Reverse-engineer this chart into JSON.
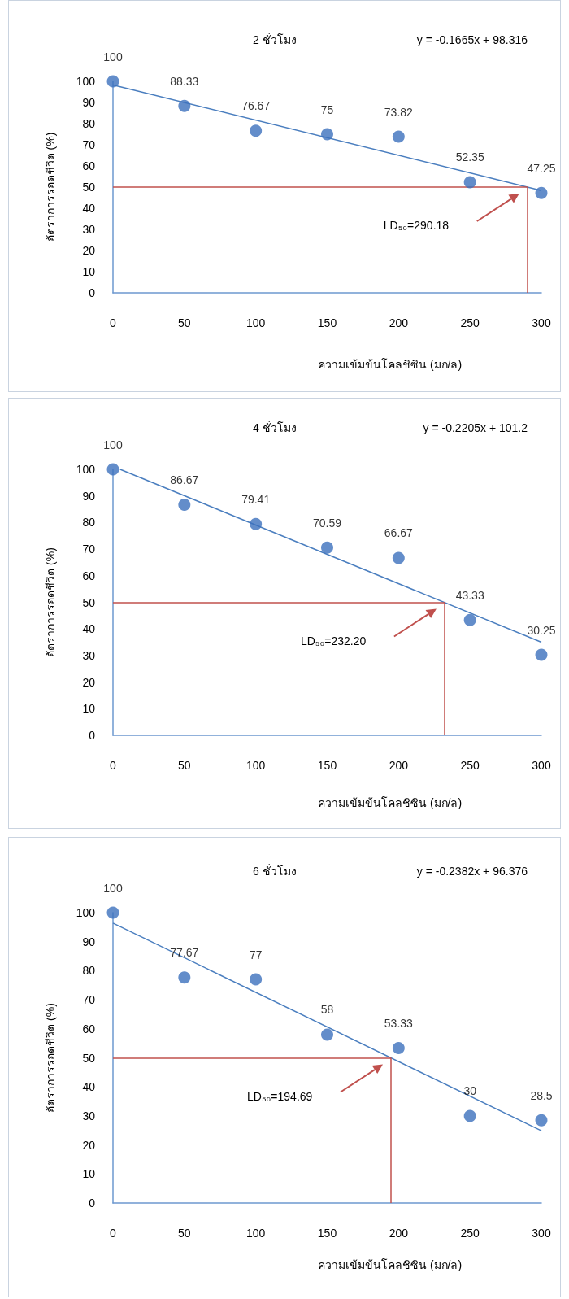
{
  "chart_data": [
    {
      "type": "scatter",
      "title": "2 ชั่วโมง",
      "xlabel": "ความเข้มข้นโคลชิซิน (มก/ล)",
      "ylabel": "อัตราการรอดชีวิต (%)",
      "x": [
        0,
        50,
        100,
        150,
        200,
        250,
        300
      ],
      "series": [
        {
          "color": "#3c70bd",
          "values": [
            100,
            88.33,
            76.67,
            75,
            73.82,
            52.35,
            47.25
          ],
          "value_labels": [
            "100",
            "88.33",
            "76.67",
            "75",
            "73.82",
            "52.35",
            "47.25"
          ]
        },
        {
          "type": "line",
          "color": "#4a7ebf",
          "x": [
            0,
            300
          ],
          "values": [
            98.3,
            48.4
          ],
          "marker": "none"
        }
      ],
      "xlim": [
        0,
        300
      ],
      "xticks": [
        0,
        50,
        100,
        150,
        200,
        250,
        300
      ],
      "ylim": [
        0,
        100
      ],
      "yticks": [
        0,
        10,
        20,
        30,
        40,
        50,
        60,
        70,
        80,
        90,
        100
      ],
      "ref_lines": [
        {
          "axis": "y",
          "value": 50,
          "color": "#c0504d"
        },
        {
          "axis": "x",
          "value": 290.18,
          "color": "#c0504d"
        }
      ],
      "annotations": [
        "y = -0.1665x + 98.316",
        "LD₅₀=290.18"
      ],
      "marker": "circle",
      "grid": false
    },
    {
      "type": "scatter",
      "title": "4 ชั่วโมง",
      "xlabel": "ความเข้มข้นโคลชิซิน (มก/ล)",
      "ylabel": "อัตราการรอดชีวิต (%)",
      "x": [
        0,
        50,
        100,
        150,
        200,
        250,
        300
      ],
      "series": [
        {
          "color": "#3c70bd",
          "values": [
            100,
            86.67,
            79.41,
            70.59,
            66.67,
            43.33,
            30.25
          ],
          "value_labels": [
            "100",
            "86.67",
            "79.41",
            "70.59",
            "66.67",
            "43.33",
            "30.25"
          ]
        },
        {
          "type": "line",
          "color": "#4a7ebf",
          "x": [
            5,
            300
          ],
          "values": [
            100,
            35
          ],
          "marker": "none"
        }
      ],
      "xlim": [
        0,
        300
      ],
      "xticks": [
        0,
        50,
        100,
        150,
        200,
        250,
        300
      ],
      "ylim": [
        0,
        100
      ],
      "yticks": [
        0,
        10,
        20,
        30,
        40,
        50,
        60,
        70,
        80,
        90,
        100
      ],
      "ref_lines": [
        {
          "axis": "y",
          "value": 50,
          "color": "#c0504d"
        },
        {
          "axis": "x",
          "value": 232.2,
          "color": "#c0504d"
        }
      ],
      "annotations": [
        "y = -0.2205x + 101.2",
        "LD₅₀=232.20"
      ],
      "marker": "circle",
      "grid": false
    },
    {
      "type": "scatter",
      "title": "6 ชั่วโมง",
      "xlabel": "ความเข้มข้นโคลชิซิน (มก/ล)",
      "ylabel": "อัตราการรอดชีวิต (%)",
      "x": [
        0,
        50,
        100,
        150,
        200,
        250,
        300
      ],
      "series": [
        {
          "color": "#3c70bd",
          "values": [
            100,
            77.67,
            77,
            58,
            53.33,
            30,
            28.5
          ],
          "value_labels": [
            "100",
            "77.67",
            "77",
            "58",
            "53.33",
            "30",
            "28.5"
          ]
        },
        {
          "type": "line",
          "color": "#4a7ebf",
          "x": [
            0,
            300
          ],
          "values": [
            96.4,
            24.9
          ],
          "marker": "none"
        }
      ],
      "xlim": [
        0,
        300
      ],
      "xticks": [
        0,
        50,
        100,
        150,
        200,
        250,
        300
      ],
      "ylim": [
        0,
        100
      ],
      "yticks": [
        0,
        10,
        20,
        30,
        40,
        50,
        60,
        70,
        80,
        90,
        100
      ],
      "ref_lines": [
        {
          "axis": "y",
          "value": 50,
          "color": "#c0504d"
        },
        {
          "axis": "x",
          "value": 194.69,
          "color": "#c0504d"
        }
      ],
      "annotations": [
        "y = -0.2382x + 96.376",
        "LD₅₀=194.69"
      ],
      "marker": "circle",
      "grid": false
    }
  ]
}
